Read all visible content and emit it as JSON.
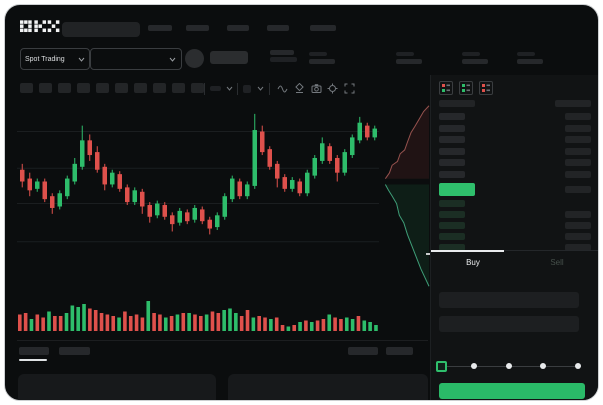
{
  "colors": {
    "green": "#2ebd6b",
    "red": "#df514c",
    "bright_green_bar": "#2fbf6c",
    "buy_button_green": "#2aba68",
    "window_bg": "#0b0d0e",
    "panel_bg": "#111314",
    "placeholder": "#26282b",
    "text": "#e8eaec",
    "text_dim": "#6b7075"
  },
  "header": {
    "brand": "OKX",
    "nav_placeholder_count": 5,
    "stat_pair_count": 4
  },
  "market_bar": {
    "market_selector_label": "Spot Trading"
  },
  "chart_toolbar": {
    "tool_button_count": 10,
    "icon_names": [
      "interval-dropdown",
      "chart-style-dropdown",
      "wave-icon",
      "draw-icon",
      "camera-icon",
      "settings-icon",
      "fullscreen-icon"
    ]
  },
  "order_book": {
    "view_icon_names": [
      "book-all-icon",
      "book-bids-icon",
      "book-asks-icon"
    ],
    "ask_row_count": 6,
    "bid_row_count": 5,
    "tabs": {
      "buy": "Buy",
      "sell": "Sell"
    }
  },
  "order_form": {
    "input_count": 2,
    "slider_stop_count": 5,
    "slider_active_index": 0
  },
  "chart_data": {
    "type": "candlestick+volume+depth",
    "ylim": [
      0,
      100
    ],
    "gridline_levels": [
      84,
      59,
      35,
      9
    ],
    "candles": {
      "ohlc": [
        [
          58,
          62,
          46,
          50
        ],
        [
          52,
          56,
          40,
          44
        ],
        [
          45,
          52,
          43,
          50
        ],
        [
          50,
          52,
          36,
          38
        ],
        [
          40,
          42,
          28,
          32
        ],
        [
          33,
          44,
          31,
          42
        ],
        [
          40,
          54,
          38,
          52
        ],
        [
          50,
          66,
          48,
          62
        ],
        [
          60,
          88,
          58,
          78
        ],
        [
          78,
          82,
          64,
          68
        ],
        [
          70,
          74,
          56,
          58
        ],
        [
          60,
          62,
          44,
          48
        ],
        [
          48,
          58,
          46,
          56
        ],
        [
          55,
          57,
          43,
          45
        ],
        [
          46,
          48,
          34,
          36
        ],
        [
          36,
          46,
          34,
          44
        ],
        [
          43,
          45,
          28,
          33
        ],
        [
          34,
          36,
          22,
          26
        ],
        [
          27,
          37,
          25,
          35
        ],
        [
          34,
          36,
          24,
          26
        ],
        [
          27,
          29,
          16,
          21
        ],
        [
          22,
          32,
          20,
          30
        ],
        [
          29,
          31,
          21,
          23
        ],
        [
          24,
          34,
          22,
          32
        ],
        [
          31,
          33,
          21,
          23
        ],
        [
          24,
          26,
          14,
          18
        ],
        [
          19,
          29,
          17,
          27
        ],
        [
          26,
          42,
          24,
          40
        ],
        [
          38,
          54,
          36,
          52
        ],
        [
          50,
          52,
          38,
          40
        ],
        [
          40,
          50,
          38,
          48
        ],
        [
          47,
          96,
          45,
          85
        ],
        [
          84,
          88,
          68,
          70
        ],
        [
          72,
          74,
          58,
          60
        ],
        [
          62,
          64,
          46,
          52
        ],
        [
          53,
          55,
          43,
          45
        ],
        [
          45,
          53,
          43,
          51
        ],
        [
          50,
          52,
          40,
          42
        ],
        [
          42,
          58,
          40,
          56
        ],
        [
          54,
          68,
          52,
          66
        ],
        [
          64,
          80,
          62,
          76
        ],
        [
          74,
          76,
          62,
          64
        ],
        [
          66,
          68,
          50,
          56
        ],
        [
          56,
          72,
          54,
          70
        ],
        [
          68,
          82,
          66,
          80
        ],
        [
          78,
          94,
          76,
          90
        ],
        [
          88,
          90,
          78,
          80
        ],
        [
          80,
          88,
          78,
          86
        ]
      ]
    },
    "volume": {
      "values": [
        0.55,
        0.6,
        0.4,
        0.55,
        0.45,
        0.65,
        0.5,
        0.5,
        0.6,
        0.85,
        0.8,
        0.9,
        0.75,
        0.7,
        0.6,
        0.55,
        0.5,
        0.45,
        0.65,
        0.5,
        0.55,
        0.45,
        1.0,
        0.6,
        0.55,
        0.45,
        0.5,
        0.55,
        0.6,
        0.6,
        0.55,
        0.5,
        0.55,
        0.65,
        0.6,
        0.7,
        0.75,
        0.6,
        0.5,
        0.7,
        0.45,
        0.5,
        0.45,
        0.4,
        0.45,
        0.2,
        0.15,
        0.2,
        0.3,
        0.35,
        0.3,
        0.35,
        0.4,
        0.55,
        0.45,
        0.4,
        0.45,
        0.4,
        0.5,
        0.35,
        0.3,
        0.2
      ],
      "colors": [
        "r",
        "r",
        "g",
        "r",
        "r",
        "g",
        "r",
        "r",
        "g",
        "g",
        "g",
        "g",
        "r",
        "r",
        "r",
        "r",
        "r",
        "g",
        "r",
        "r",
        "r",
        "r",
        "g",
        "r",
        "r",
        "g",
        "r",
        "g",
        "r",
        "g",
        "r",
        "r",
        "g",
        "r",
        "r",
        "g",
        "g",
        "g",
        "r",
        "r",
        "g",
        "r",
        "r",
        "g",
        "r",
        "r",
        "g",
        "r",
        "g",
        "r",
        "g",
        "r",
        "r",
        "g",
        "r",
        "r",
        "g",
        "g",
        "r",
        "g",
        "g",
        "g"
      ]
    },
    "depth": {
      "asks": [
        [
          0.03,
          0.41
        ],
        [
          0.12,
          0.38
        ],
        [
          0.18,
          0.34
        ],
        [
          0.3,
          0.32
        ],
        [
          0.36,
          0.28
        ],
        [
          0.46,
          0.26
        ],
        [
          0.52,
          0.22
        ],
        [
          0.6,
          0.17
        ],
        [
          0.68,
          0.14
        ],
        [
          0.78,
          0.1
        ],
        [
          0.88,
          0.06
        ],
        [
          1,
          0.03
        ]
      ],
      "bids": [
        [
          0.03,
          0.44
        ],
        [
          0.1,
          0.47
        ],
        [
          0.18,
          0.5
        ],
        [
          0.28,
          0.54
        ],
        [
          0.34,
          0.6
        ],
        [
          0.44,
          0.64
        ],
        [
          0.52,
          0.7
        ],
        [
          0.62,
          0.76
        ],
        [
          0.72,
          0.82
        ],
        [
          0.82,
          0.88
        ],
        [
          0.92,
          0.93
        ],
        [
          1,
          0.97
        ]
      ]
    }
  }
}
